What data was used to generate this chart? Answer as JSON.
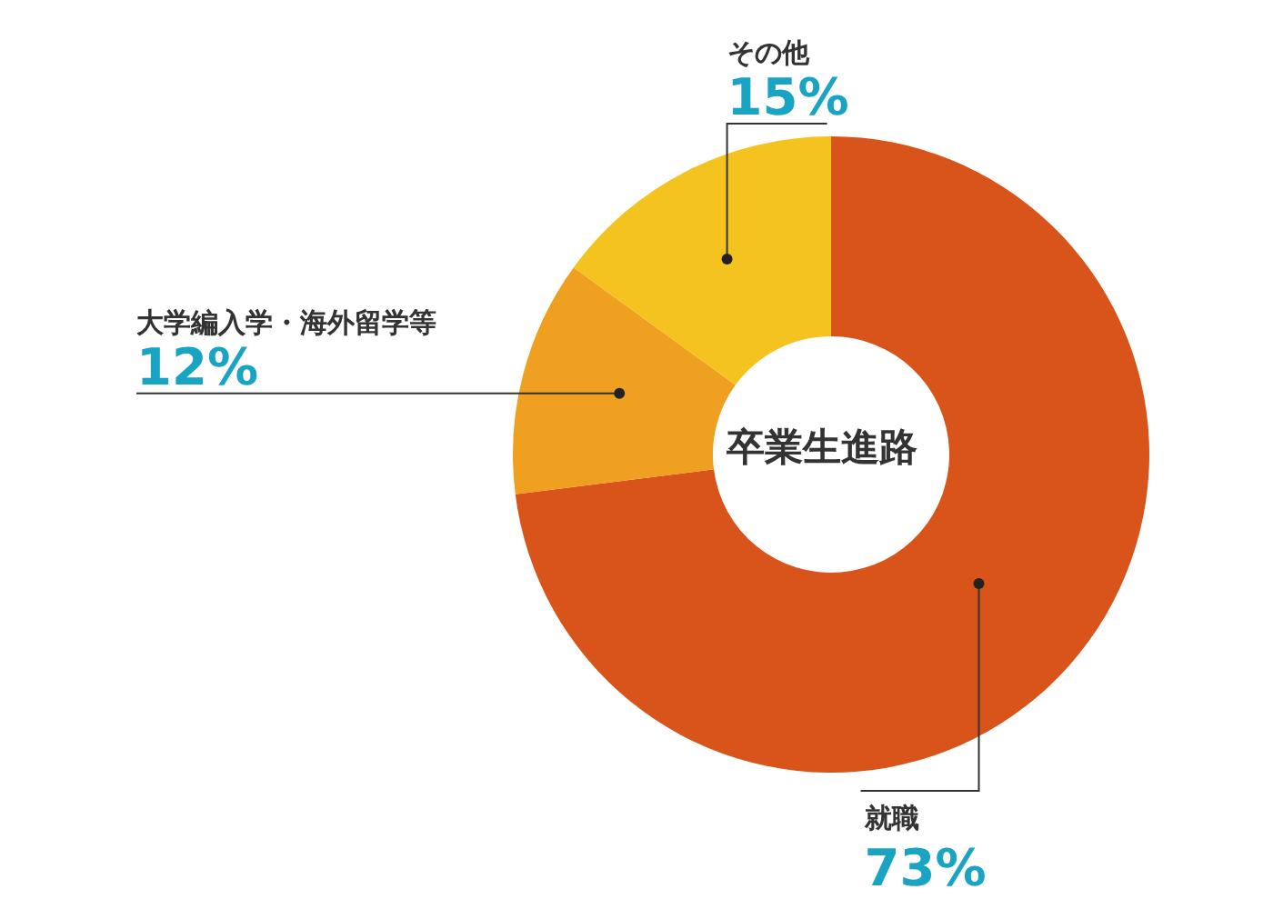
{
  "chart_data": {
    "type": "donut",
    "title": "卒業生進路",
    "categories": [
      "就職",
      "大学編入学・海外留学等",
      "その他"
    ],
    "values": [
      73,
      12,
      15
    ],
    "colors": [
      "#d9541a",
      "#f0a020",
      "#f5c320"
    ],
    "value_labels": [
      "73%",
      "12%",
      "15%"
    ]
  }
}
